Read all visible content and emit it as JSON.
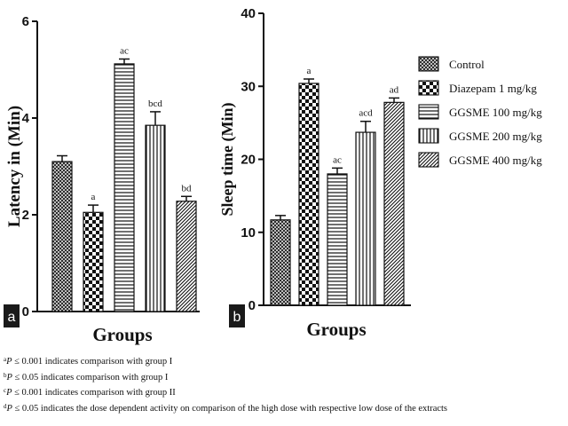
{
  "chart_data": [
    {
      "type": "bar",
      "panel_label": "a",
      "ylabel": "Latency in (Min)",
      "xlabel": "Groups",
      "ylim": [
        0,
        6
      ],
      "yticks": [
        "0",
        "2",
        "4",
        "6"
      ],
      "series": [
        {
          "name": "Control",
          "value": 3.1,
          "error": 0.12,
          "sig": ""
        },
        {
          "name": "Diazepam 1 mg/kg",
          "value": 2.05,
          "error": 0.15,
          "sig": "a"
        },
        {
          "name": "GGSME 100 mg/kg",
          "value": 5.12,
          "error": 0.1,
          "sig": "ac"
        },
        {
          "name": "GGSME 200 mg/kg",
          "value": 3.85,
          "error": 0.28,
          "sig": "bcd"
        },
        {
          "name": "GGSME 400 mg/kg",
          "value": 2.28,
          "error": 0.1,
          "sig": "bd"
        }
      ]
    },
    {
      "type": "bar",
      "panel_label": "b",
      "ylabel": "Sleep time (Min)",
      "xlabel": "Groups",
      "ylim": [
        0,
        40
      ],
      "yticks": [
        "0",
        "10",
        "20",
        "30",
        "40"
      ],
      "series": [
        {
          "name": "Control",
          "value": 11.7,
          "error": 0.6,
          "sig": ""
        },
        {
          "name": "Diazepam 1 mg/kg",
          "value": 30.4,
          "error": 0.6,
          "sig": "a"
        },
        {
          "name": "GGSME 100 mg/kg",
          "value": 18.0,
          "error": 0.8,
          "sig": "ac"
        },
        {
          "name": "GGSME 200 mg/kg",
          "value": 23.7,
          "error": 1.5,
          "sig": "acd"
        },
        {
          "name": "GGSME 400 mg/kg",
          "value": 27.8,
          "error": 0.6,
          "sig": "ad"
        }
      ]
    }
  ],
  "legend": [
    {
      "label": "Control",
      "pattern": "crosshatch"
    },
    {
      "label": "Diazepam 1 mg/kg",
      "pattern": "checker"
    },
    {
      "label": "GGSME 100 mg/kg",
      "pattern": "horizontal"
    },
    {
      "label": "GGSME 200 mg/kg",
      "pattern": "vertical"
    },
    {
      "label": "GGSME 400 mg/kg",
      "pattern": "diagonal"
    }
  ],
  "footnotes": [
    {
      "sup": "a",
      "p": "P",
      "text": " ≤ 0.001 indicates comparison with group I"
    },
    {
      "sup": "b",
      "p": "P",
      "text": " ≤ 0.05 indicates comparison with group I"
    },
    {
      "sup": "c",
      "p": "P",
      "text": " ≤ 0.001 indicates comparison with group II"
    },
    {
      "sup": "d",
      "p": "P",
      "text": " ≤ 0.05 indicates the dose dependent activity on comparison of the high dose with respective low dose of the extracts"
    }
  ]
}
